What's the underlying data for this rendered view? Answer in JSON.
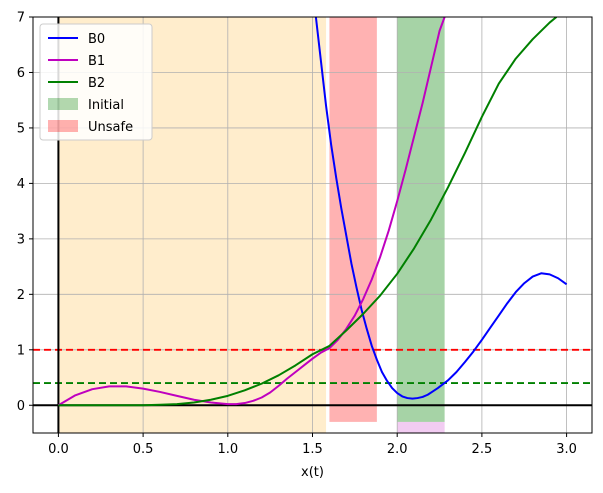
{
  "chart_data": {
    "type": "line",
    "title": "",
    "xlabel": "x(t)",
    "ylabel": "",
    "xlim": [
      -0.15,
      3.15
    ],
    "ylim": [
      -0.5,
      7
    ],
    "grid": true,
    "x_ticks": [
      0.0,
      0.5,
      1.0,
      1.5,
      2.0,
      2.5,
      3.0
    ],
    "x_tick_labels": [
      "0.0",
      "0.5",
      "1.0",
      "1.5",
      "2.0",
      "2.5",
      "3.0"
    ],
    "y_ticks": [
      0,
      1,
      2,
      3,
      4,
      5,
      6,
      7
    ],
    "y_tick_labels": [
      "0",
      "1",
      "2",
      "3",
      "4",
      "5",
      "6",
      "7"
    ],
    "legend_placement": "top-left",
    "legend": [
      {
        "label": "B0",
        "kind": "line",
        "color": "#0000ff"
      },
      {
        "label": "B1",
        "kind": "line",
        "color": "#bf00bf"
      },
      {
        "label": "B2",
        "kind": "line",
        "color": "#008000"
      },
      {
        "label": "Initial",
        "kind": "patch",
        "color": "#008000",
        "alpha": 0.3
      },
      {
        "label": "Unsafe",
        "kind": "patch",
        "color": "#ff0000",
        "alpha": 0.3
      }
    ],
    "regions": [
      {
        "name": "safe-region",
        "x": [
          0.0,
          1.58
        ],
        "y": [
          -0.5,
          7
        ],
        "color": "#ffa500",
        "alpha": 0.2
      },
      {
        "name": "unsafe-region",
        "x": [
          1.6,
          1.88
        ],
        "y": [
          -0.3,
          7
        ],
        "color": "#ff0000",
        "alpha": 0.3
      },
      {
        "name": "initial-region",
        "x": [
          2.0,
          2.28
        ],
        "y": [
          -0.3,
          7
        ],
        "color": "#008000",
        "alpha": 0.35
      },
      {
        "name": "initial-region-bottom",
        "x": [
          2.0,
          2.28
        ],
        "y": [
          -0.5,
          -0.3
        ],
        "color": "#bf00bf",
        "alpha": 0.2
      }
    ],
    "hlines": [
      {
        "name": "red-threshold",
        "y": 1.0,
        "color": "#ff0000",
        "style": "dashed"
      },
      {
        "name": "green-threshold",
        "y": 0.4,
        "color": "#008000",
        "style": "dashed"
      },
      {
        "name": "zero-line",
        "y": 0.0,
        "color": "#000000",
        "style": "solid"
      }
    ],
    "vlines": [
      {
        "name": "x-zero-line",
        "x": 0.0,
        "color": "#000000",
        "style": "solid"
      }
    ],
    "series": [
      {
        "name": "B0",
        "color": "#0000ff",
        "x": [
          1.52,
          1.55,
          1.58,
          1.61,
          1.64,
          1.67,
          1.7,
          1.73,
          1.76,
          1.79,
          1.82,
          1.85,
          1.88,
          1.91,
          1.94,
          1.97,
          2.0,
          2.03,
          2.06,
          2.09,
          2.12,
          2.15,
          2.18,
          2.21,
          2.24,
          2.27,
          2.3,
          2.35,
          2.4,
          2.45,
          2.5,
          2.55,
          2.6,
          2.65,
          2.7,
          2.75,
          2.8,
          2.85,
          2.9,
          2.95,
          3.0
        ],
        "y": [
          7.0,
          6.2,
          5.4,
          4.7,
          4.1,
          3.55,
          3.05,
          2.55,
          2.12,
          1.72,
          1.38,
          1.07,
          0.82,
          0.6,
          0.44,
          0.31,
          0.22,
          0.16,
          0.13,
          0.12,
          0.13,
          0.15,
          0.19,
          0.25,
          0.31,
          0.38,
          0.45,
          0.6,
          0.78,
          0.97,
          1.18,
          1.4,
          1.62,
          1.84,
          2.04,
          2.2,
          2.32,
          2.38,
          2.36,
          2.29,
          2.18
        ]
      },
      {
        "name": "B1",
        "color": "#bf00bf",
        "x": [
          0.0,
          0.1,
          0.2,
          0.3,
          0.4,
          0.5,
          0.6,
          0.7,
          0.8,
          0.9,
          1.0,
          1.05,
          1.1,
          1.15,
          1.2,
          1.25,
          1.3,
          1.35,
          1.4,
          1.45,
          1.5,
          1.55,
          1.6,
          1.65,
          1.7,
          1.75,
          1.8,
          1.85,
          1.9,
          1.95,
          2.0,
          2.05,
          2.1,
          2.15,
          2.2,
          2.25,
          2.28
        ],
        "y": [
          0.0,
          0.18,
          0.29,
          0.34,
          0.34,
          0.3,
          0.24,
          0.17,
          0.1,
          0.05,
          0.02,
          0.02,
          0.04,
          0.08,
          0.14,
          0.23,
          0.35,
          0.48,
          0.6,
          0.72,
          0.84,
          0.95,
          1.03,
          1.18,
          1.38,
          1.62,
          1.92,
          2.27,
          2.68,
          3.15,
          3.68,
          4.25,
          4.85,
          5.45,
          6.1,
          6.75,
          7.0
        ]
      },
      {
        "name": "B2",
        "color": "#008000",
        "x": [
          0.0,
          0.1,
          0.2,
          0.3,
          0.4,
          0.5,
          0.6,
          0.7,
          0.8,
          0.9,
          1.0,
          1.1,
          1.2,
          1.3,
          1.4,
          1.5,
          1.6,
          1.7,
          1.8,
          1.9,
          2.0,
          2.1,
          2.2,
          2.3,
          2.4,
          2.5,
          2.6,
          2.7,
          2.8,
          2.9,
          2.94
        ],
        "y": [
          0.0,
          0.0,
          0.0,
          0.0,
          0.0,
          0.0,
          0.01,
          0.02,
          0.05,
          0.1,
          0.17,
          0.27,
          0.39,
          0.54,
          0.72,
          0.92,
          1.07,
          1.35,
          1.65,
          1.98,
          2.37,
          2.83,
          3.35,
          3.93,
          4.55,
          5.2,
          5.8,
          6.25,
          6.6,
          6.9,
          7.0
        ]
      }
    ]
  }
}
